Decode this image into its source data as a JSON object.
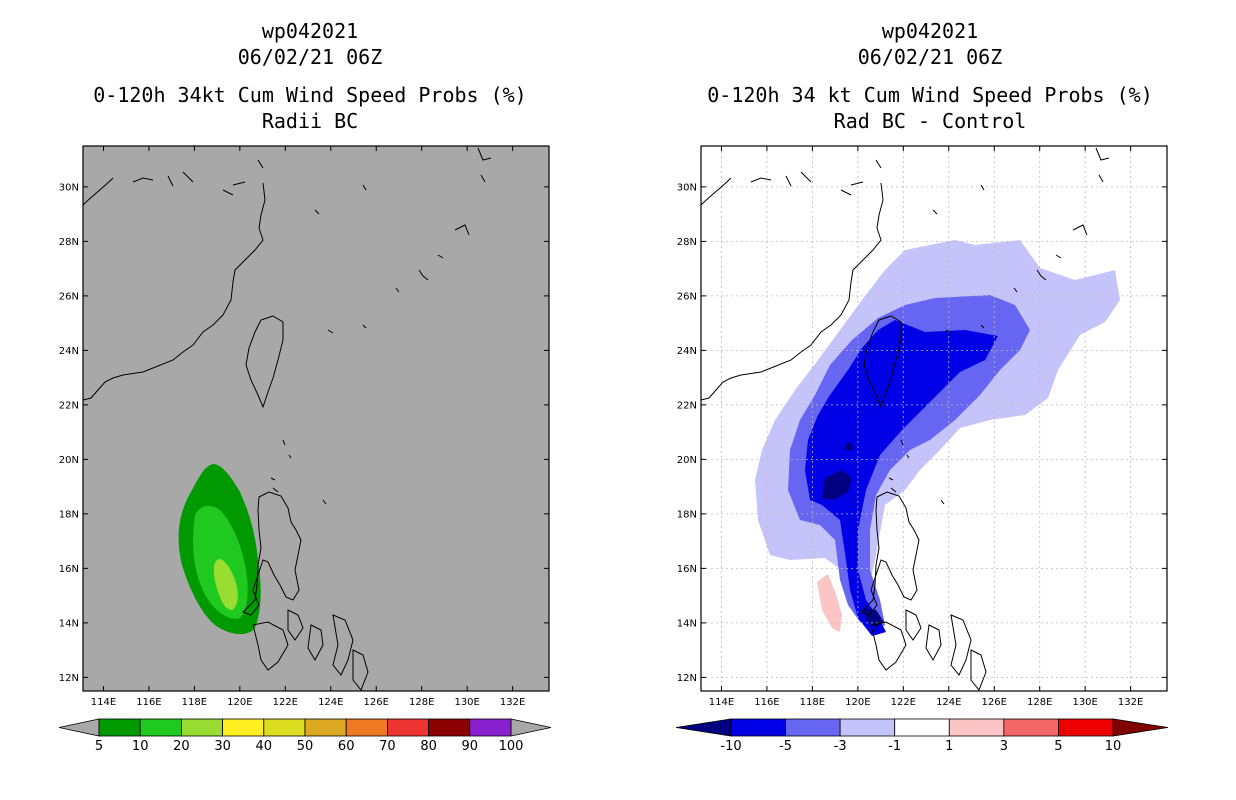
{
  "left_panel": {
    "title_line1": "wp042021",
    "title_line2": "06/02/21 06Z",
    "title_line3": "0-120h 34kt Cum Wind Speed Probs (%)",
    "title_line4": "Radii BC",
    "background_color": "#a8a8a8",
    "colorbar": {
      "labels": [
        "5",
        "10",
        "20",
        "30",
        "40",
        "50",
        "60",
        "70",
        "80",
        "90",
        "100"
      ],
      "colors": [
        "#009900",
        "#1fc91f",
        "#99dd33",
        "#ffee22",
        "#dddd22",
        "#dda922",
        "#ee7a22",
        "#ee3333",
        "#8b0000",
        "#8a1fd0"
      ],
      "end_color": "#a8a8a8"
    }
  },
  "right_panel": {
    "title_line1": "wp042021",
    "title_line2": "06/02/21 06Z",
    "title_line3": "0-120h 34 kt Cum Wind Speed Probs (%)",
    "title_line4": "Rad BC - Control",
    "background_color": "#ffffff",
    "colorbar": {
      "labels": [
        "-10",
        "-5",
        "-3",
        "-1",
        "1",
        "3",
        "5",
        "10"
      ],
      "colors": [
        "#0000e6",
        "#6666f2",
        "#c4c4fa",
        "#ffffff",
        "#fcc5c5",
        "#f26666",
        "#ee0000"
      ],
      "left_end_color": "#000080",
      "right_end_color": "#800000"
    }
  },
  "chart_data": [
    {
      "type": "heatmap",
      "title": "0-120h 34kt Cum Wind Speed Probs (%) - Radii BC",
      "storm": "wp042021",
      "time": "06/02/21 06Z",
      "x_ticks": [
        "114E",
        "116E",
        "118E",
        "120E",
        "122E",
        "124E",
        "126E",
        "128E",
        "130E",
        "132E"
      ],
      "y_ticks": [
        "12N",
        "14N",
        "16N",
        "18N",
        "20N",
        "22N",
        "24N",
        "26N",
        "28N",
        "30N"
      ],
      "xlim": [
        113.1,
        133.6
      ],
      "ylim": [
        11.5,
        31.5
      ],
      "levels": [
        5,
        10,
        20,
        30,
        40,
        50,
        60,
        70,
        80,
        90,
        100
      ],
      "filled_ranges_present": [
        "5-10",
        "10-20",
        "20-30"
      ],
      "max_region_center": [
        119.1,
        15.4
      ]
    },
    {
      "type": "heatmap",
      "title": "0-120h 34 kt Cum Wind Speed Probs (%) - Rad BC - Control",
      "storm": "wp042021",
      "time": "06/02/21 06Z",
      "x_ticks": [
        "114E",
        "116E",
        "118E",
        "120E",
        "122E",
        "124E",
        "126E",
        "128E",
        "130E",
        "132E"
      ],
      "y_ticks": [
        "12N",
        "14N",
        "16N",
        "18N",
        "20N",
        "22N",
        "24N",
        "26N",
        "28N",
        "30N"
      ],
      "xlim": [
        113.1,
        133.6
      ],
      "ylim": [
        11.5,
        31.5
      ],
      "levels": [
        -10,
        -5,
        -3,
        -1,
        1,
        3,
        5,
        10
      ],
      "filled_ranges_present": [
        "-10 or less",
        "-10 to -5",
        "-5 to -3",
        "-3 to -1",
        "1 to 3"
      ],
      "grid": true
    }
  ]
}
